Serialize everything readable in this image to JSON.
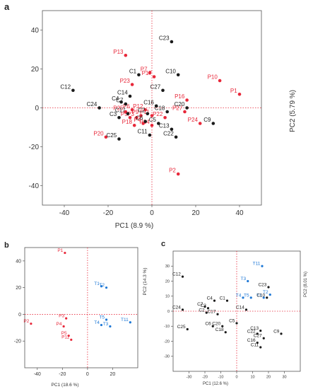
{
  "chart_data": [
    {
      "type": "scatter",
      "panel_label": "a",
      "xlabel": "PC1  (8.9 %)",
      "ylabel": "PC2  (5.79 %)",
      "xlim": [
        -50,
        50
      ],
      "ylim": [
        -50,
        50
      ],
      "xticks": [
        -40,
        -20,
        0,
        20,
        40
      ],
      "yticks": [
        -40,
        -20,
        0,
        20,
        40
      ],
      "series": [
        {
          "color": "#e8283a",
          "points": [
            {
              "label": "P13",
              "x": -12,
              "y": 27
            },
            {
              "label": "P7",
              "x": -1,
              "y": 18
            },
            {
              "label": "P23",
              "x": -9,
              "y": 12
            },
            {
              "label": "P17",
              "x": 1,
              "y": 16
            },
            {
              "label": "P10",
              "x": 31,
              "y": 14
            },
            {
              "label": "P1",
              "x": 40,
              "y": 7
            },
            {
              "label": "P16",
              "x": 16,
              "y": 4
            },
            {
              "label": "P27",
              "x": 15,
              "y": -2
            },
            {
              "label": "P24",
              "x": 22,
              "y": -8
            },
            {
              "label": "P25",
              "x": -12,
              "y": -2
            },
            {
              "label": "P6",
              "x": -9,
              "y": -1
            },
            {
              "label": "P12",
              "x": -3,
              "y": -1
            },
            {
              "label": "P5",
              "x": -10,
              "y": -5
            },
            {
              "label": "P3",
              "x": -7,
              "y": -5
            },
            {
              "label": "P9",
              "x": -5,
              "y": -4
            },
            {
              "label": "P11",
              "x": 0,
              "y": -4
            },
            {
              "label": "P22",
              "x": 6,
              "y": -5
            },
            {
              "label": "P18",
              "x": -8,
              "y": -9
            },
            {
              "label": "P4",
              "x": -4,
              "y": -8
            },
            {
              "label": "P14",
              "x": 0,
              "y": -9
            },
            {
              "label": "P20",
              "x": -21,
              "y": -15
            },
            {
              "label": "P2",
              "x": 12,
              "y": -34
            }
          ]
        },
        {
          "color": "#1a1a1a",
          "points": [
            {
              "label": "C23",
              "x": 9,
              "y": 34
            },
            {
              "label": "C1",
              "x": -6,
              "y": 17
            },
            {
              "label": "C10",
              "x": 12,
              "y": 17
            },
            {
              "label": "C27",
              "x": 5,
              "y": 9
            },
            {
              "label": "C14",
              "x": -10,
              "y": 6
            },
            {
              "label": "C12",
              "x": -36,
              "y": 9
            },
            {
              "label": "C4",
              "x": -14,
              "y": 3
            },
            {
              "label": "C7",
              "x": -12,
              "y": 2
            },
            {
              "label": "C24",
              "x": -24,
              "y": 0
            },
            {
              "label": "C16",
              "x": 2,
              "y": 1
            },
            {
              "label": "C20",
              "x": 16,
              "y": 0
            },
            {
              "label": "C18",
              "x": 7,
              "y": -2
            },
            {
              "label": "C17",
              "x": -11,
              "y": -3
            },
            {
              "label": "C2",
              "x": -2,
              "y": -3
            },
            {
              "label": "C3",
              "x": -15,
              "y": -5
            },
            {
              "label": "C6",
              "x": -3,
              "y": -7
            },
            {
              "label": "C5",
              "x": 3,
              "y": -8
            },
            {
              "label": "C13",
              "x": 9,
              "y": -11
            },
            {
              "label": "C9",
              "x": 28,
              "y": -8
            },
            {
              "label": "C11",
              "x": -1,
              "y": -14
            },
            {
              "label": "C25",
              "x": -15,
              "y": -16
            },
            {
              "label": "C22",
              "x": 11,
              "y": -15
            }
          ]
        }
      ]
    },
    {
      "type": "scatter",
      "panel_label": "b",
      "xlabel": "PC1  (18.6 %)",
      "ylabel": "PC2  (14.3 %)",
      "xlim": [
        -50,
        40
      ],
      "ylim": [
        -40,
        50
      ],
      "xticks": [
        -40,
        -20,
        0,
        20
      ],
      "yticks": [
        -20,
        0,
        20,
        40
      ],
      "series": [
        {
          "color": "#e8283a",
          "points": [
            {
              "label": "P1",
              "x": -18,
              "y": 46
            },
            {
              "label": "P3",
              "x": -17,
              "y": -3
            },
            {
              "label": "P2",
              "x": -45,
              "y": -7
            },
            {
              "label": "P4",
              "x": -19,
              "y": -9
            },
            {
              "label": "P5",
              "x": -15,
              "y": -16
            },
            {
              "label": "P11",
              "x": -13,
              "y": -19
            }
          ]
        },
        {
          "color": "#1e78d6",
          "points": [
            {
              "label": "T1",
              "x": 11,
              "y": 21
            },
            {
              "label": "T2",
              "x": 15,
              "y": 20
            },
            {
              "label": "T5",
              "x": 15,
              "y": -4
            },
            {
              "label": "T11",
              "x": 34,
              "y": -6
            },
            {
              "label": "T4",
              "x": 11,
              "y": -8
            },
            {
              "label": "T3",
              "x": 18,
              "y": -9
            }
          ]
        }
      ]
    },
    {
      "type": "scatter",
      "panel_label": "c",
      "xlabel": "PC1  (12.6 %)",
      "ylabel": "PC2  (8.01 %)",
      "xlim": [
        -40,
        40
      ],
      "ylim": [
        -40,
        40
      ],
      "xticks": [
        -30,
        -20,
        -10,
        0,
        10,
        20,
        30
      ],
      "yticks": [
        -30,
        -20,
        -10,
        0,
        10,
        20,
        30
      ],
      "series": [
        {
          "color": "#1e78d6",
          "points": [
            {
              "label": "T11",
              "x": 16,
              "y": 30
            },
            {
              "label": "T3",
              "x": 7,
              "y": 20
            },
            {
              "label": "T4",
              "x": 4,
              "y": 9
            },
            {
              "label": "T5",
              "x": 9,
              "y": 9
            },
            {
              "label": "T2",
              "x": 21,
              "y": 11
            },
            {
              "label": "T1",
              "x": 17,
              "y": 9
            }
          ]
        },
        {
          "color": "#1a1a1a",
          "points": [
            {
              "label": "C12",
              "x": -34,
              "y": 23
            },
            {
              "label": "C23",
              "x": 20,
              "y": 16
            },
            {
              "label": "C10",
              "x": 19,
              "y": 9
            },
            {
              "label": "C4",
              "x": -14,
              "y": 7
            },
            {
              "label": "C1",
              "x": -6,
              "y": 7
            },
            {
              "label": "C14",
              "x": 6,
              "y": 1
            },
            {
              "label": "C24",
              "x": -34,
              "y": 1
            },
            {
              "label": "C7",
              "x": -20,
              "y": 3
            },
            {
              "label": "C3",
              "x": -18,
              "y": 2
            },
            {
              "label": "C2",
              "x": -19,
              "y": -1
            },
            {
              "label": "C17",
              "x": -12,
              "y": -2
            },
            {
              "label": "C5",
              "x": 0,
              "y": -8
            },
            {
              "label": "C20",
              "x": -9,
              "y": -10
            },
            {
              "label": "C6",
              "x": -15,
              "y": -10
            },
            {
              "label": "C25",
              "x": -31,
              "y": -12
            },
            {
              "label": "C18",
              "x": -7,
              "y": -14
            },
            {
              "label": "C13",
              "x": 15,
              "y": -13
            },
            {
              "label": "C22",
              "x": 13,
              "y": -15
            },
            {
              "label": "C27",
              "x": 17,
              "y": -18
            },
            {
              "label": "C9",
              "x": 28,
              "y": -15
            },
            {
              "label": "C16",
              "x": 13,
              "y": -21
            },
            {
              "label": "C11",
              "x": 15,
              "y": -24
            }
          ]
        }
      ]
    }
  ]
}
